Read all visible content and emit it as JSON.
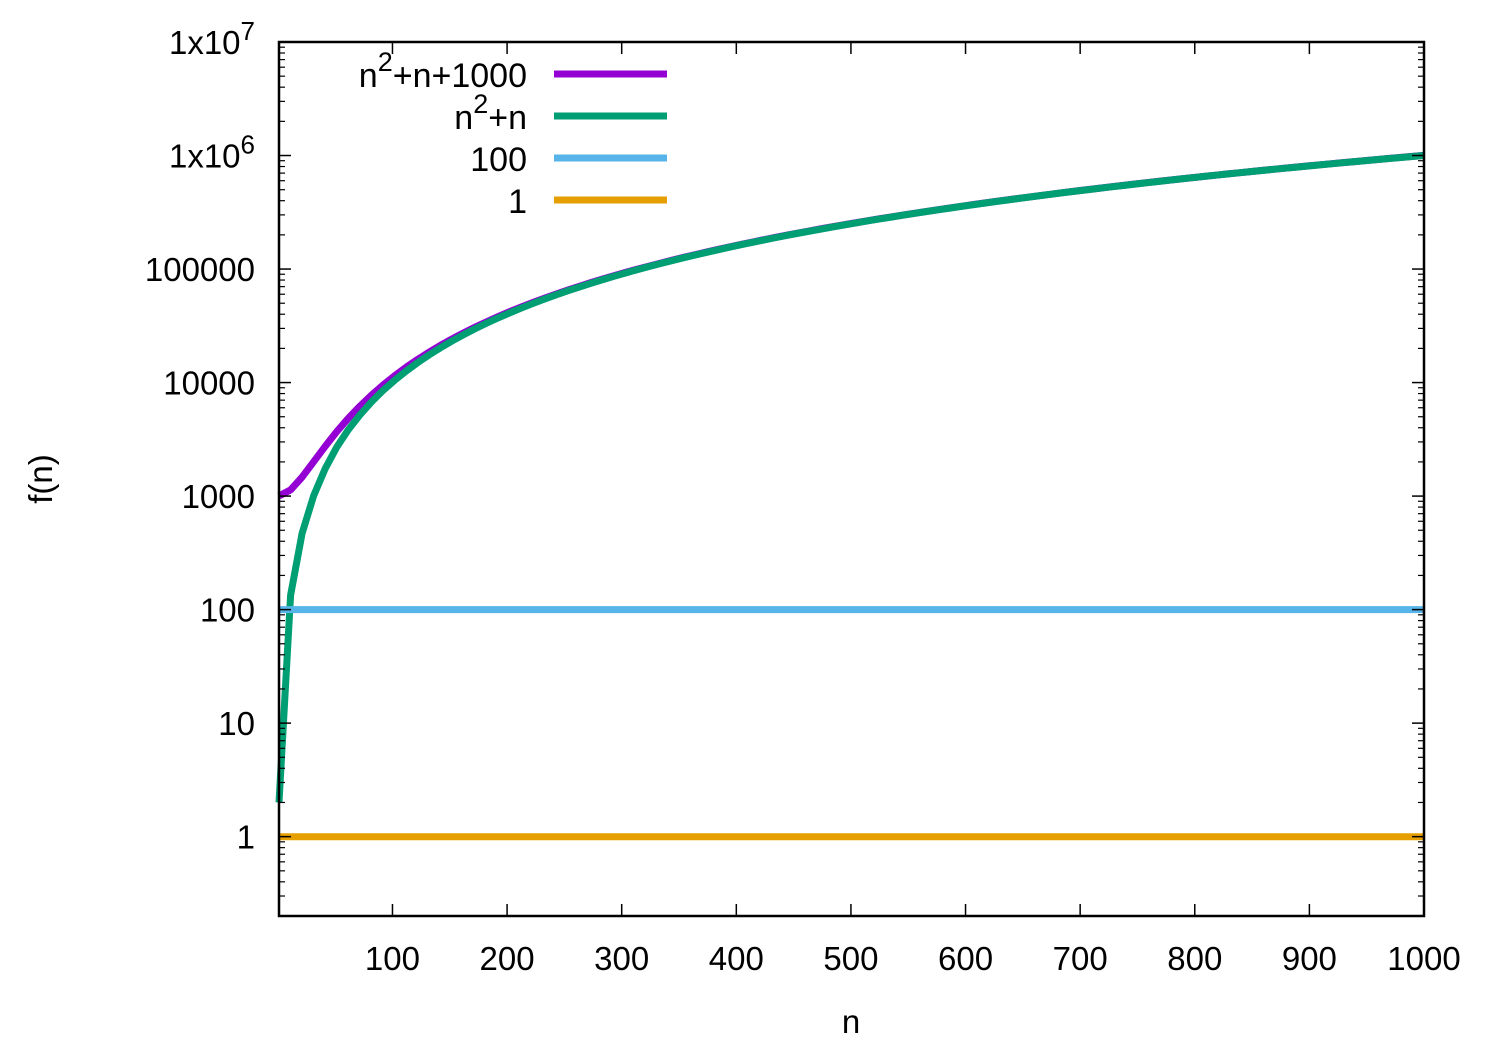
{
  "chart_data": {
    "type": "line",
    "title": "",
    "xlabel": "n",
    "ylabel": "f(n)",
    "xlim": [
      1,
      1000
    ],
    "ylim": [
      0.2,
      10000000
    ],
    "yscale": "log",
    "grid": false,
    "legend_position": "top-left",
    "x_ticks": [
      "100",
      "200",
      "300",
      "400",
      "500",
      "600",
      "700",
      "800",
      "900",
      "1000"
    ],
    "x_tick_values": [
      100,
      200,
      300,
      400,
      500,
      600,
      700,
      800,
      900,
      1000
    ],
    "y_ticks": [
      "1",
      "10",
      "100",
      "1000",
      "10000",
      "100000",
      "1x10^6",
      "1x10^7"
    ],
    "y_tick_values": [
      1,
      10,
      100,
      1000,
      10000,
      100000,
      1000000,
      10000000
    ],
    "samples": 100,
    "series": [
      {
        "name": "n²+n+1000",
        "formula": "n^2+n+1000",
        "color": "#9400d3"
      },
      {
        "name": "n²+n",
        "formula": "n^2+n",
        "color": "#009e73"
      },
      {
        "name": "100",
        "formula": "100",
        "color": "#56b4e9"
      },
      {
        "name": "1",
        "formula": "1",
        "color": "#e69f00"
      }
    ]
  }
}
